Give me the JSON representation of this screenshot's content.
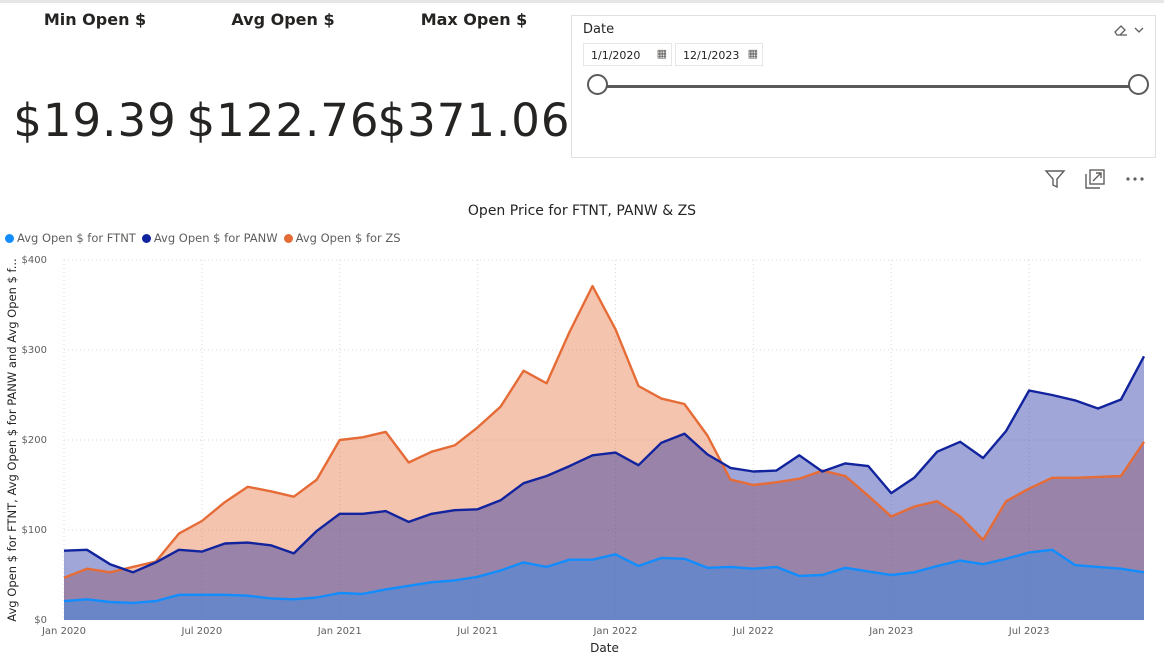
{
  "cards": [
    {
      "label": "Min Open $",
      "value": "$19.39"
    },
    {
      "label": "Avg Open $",
      "value": "$122.76"
    },
    {
      "label": "Max Open $",
      "value": "$371.06"
    }
  ],
  "slicer": {
    "title": "Date",
    "start_date": "1/1/2020",
    "end_date": "12/1/2023",
    "start_fraction": 0,
    "end_fraction": 1
  },
  "icons": [
    "eraser-icon",
    "chevron-down-icon",
    "calendar-icon",
    "filter-icon",
    "focus-mode-icon",
    "more-options-icon"
  ],
  "chart_data": {
    "type": "area",
    "title": "Open Price for FTNT, PANW & ZS",
    "xlabel": "Date",
    "ylabel": "Avg Open $ for FTNT, Avg Open $ for PANW and Avg Open $ f...",
    "ylim": [
      0,
      400
    ],
    "yticks": [
      "$0",
      "$100",
      "$200",
      "$300",
      "$400"
    ],
    "xticks": [
      "Jan 2020",
      "Jul 2020",
      "Jan 2021",
      "Jul 2021",
      "Jan 2022",
      "Jul 2022",
      "Jan 2023",
      "Jul 2023"
    ],
    "x": [
      "2020-01",
      "2020-02",
      "2020-03",
      "2020-04",
      "2020-05",
      "2020-06",
      "2020-07",
      "2020-08",
      "2020-09",
      "2020-10",
      "2020-11",
      "2020-12",
      "2021-01",
      "2021-02",
      "2021-03",
      "2021-04",
      "2021-05",
      "2021-06",
      "2021-07",
      "2021-08",
      "2021-09",
      "2021-10",
      "2021-11",
      "2021-12",
      "2022-01",
      "2022-02",
      "2022-03",
      "2022-04",
      "2022-05",
      "2022-06",
      "2022-07",
      "2022-08",
      "2022-09",
      "2022-10",
      "2022-11",
      "2022-12",
      "2023-01",
      "2023-02",
      "2023-03",
      "2023-04",
      "2023-05",
      "2023-06",
      "2023-07",
      "2023-08",
      "2023-09",
      "2023-10",
      "2023-11",
      "2023-12"
    ],
    "legend_position": "top-left",
    "grid": true,
    "series": [
      {
        "name": "Avg Open $ for FTNT",
        "color": "#118dff",
        "values": [
          21,
          23,
          20,
          19,
          21,
          28,
          28,
          28,
          27,
          24,
          23,
          25,
          30,
          29,
          34,
          38,
          42,
          44,
          48,
          55,
          64,
          59,
          67,
          67,
          73,
          60,
          69,
          68,
          58,
          59,
          57,
          59,
          49,
          50,
          58,
          54,
          50,
          53,
          60,
          66,
          62,
          68,
          75,
          78,
          61,
          59,
          57,
          53
        ]
      },
      {
        "name": "Avg Open $ for PANW",
        "color": "#12239e",
        "values": [
          77,
          78,
          62,
          53,
          64,
          78,
          76,
          85,
          86,
          83,
          74,
          99,
          118,
          118,
          121,
          109,
          118,
          122,
          123,
          133,
          152,
          160,
          171,
          183,
          186,
          172,
          197,
          207,
          184,
          169,
          165,
          166,
          183,
          165,
          174,
          171,
          141,
          158,
          187,
          198,
          180,
          210,
          255,
          250,
          244,
          235,
          245,
          293
        ]
      },
      {
        "name": "Avg Open $ for ZS",
        "color": "#e66c37",
        "values": [
          47,
          57,
          53,
          59,
          65,
          96,
          110,
          131,
          148,
          143,
          137,
          156,
          200,
          203,
          209,
          175,
          187,
          194,
          214,
          237,
          277,
          263,
          320,
          371,
          323,
          260,
          246,
          240,
          205,
          156,
          150,
          153,
          157,
          166,
          160,
          138,
          115,
          126,
          132,
          115,
          89,
          132,
          146,
          158,
          158,
          159,
          160,
          198
        ]
      }
    ]
  }
}
